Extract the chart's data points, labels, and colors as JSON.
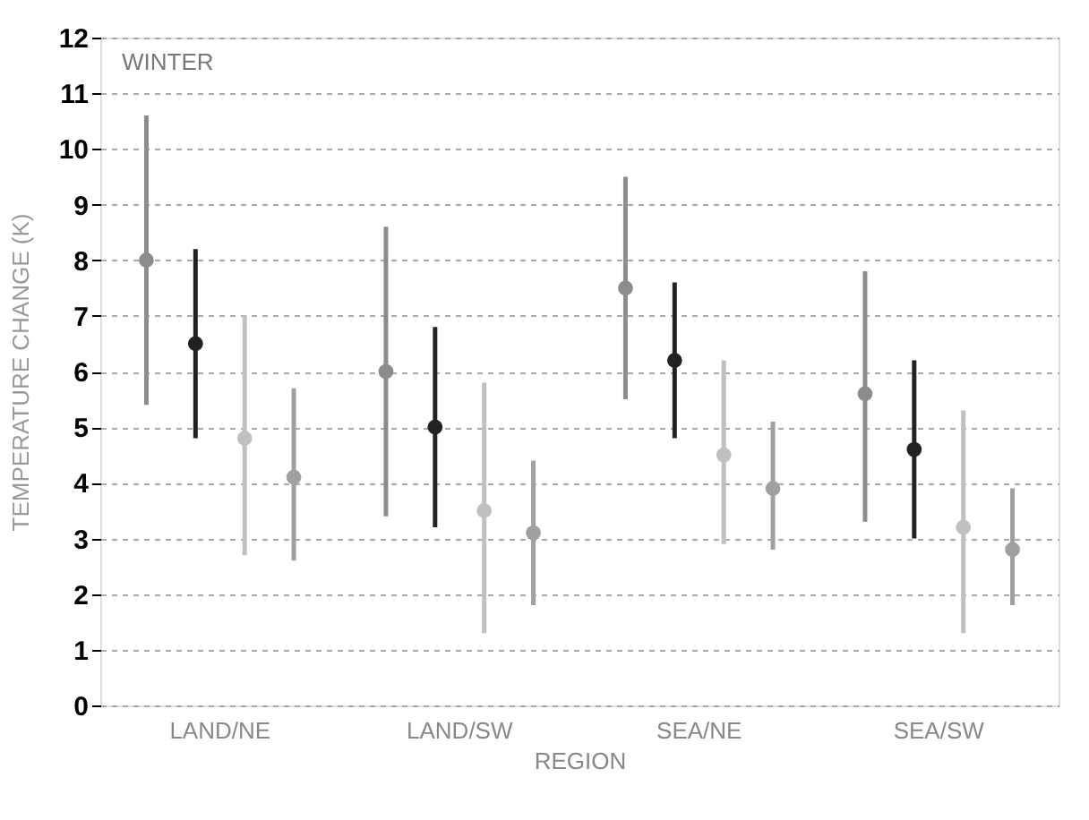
{
  "chart_data": {
    "type": "scatter",
    "xlabel": "REGION",
    "ylabel": "TEMPERATURE CHANGE (K)",
    "categories": [
      "LAND/NE",
      "LAND/SW",
      "SEA/NE",
      "SEA/SW"
    ],
    "series": [
      {
        "color": "#8c8c8c",
        "values": [
          8.0,
          6.0,
          7.5,
          5.6
        ],
        "errors": [
          [
            5.4,
            10.6
          ],
          [
            3.4,
            8.6
          ],
          [
            5.5,
            9.5
          ],
          [
            3.3,
            7.8
          ]
        ]
      },
      {
        "color": "#222222",
        "values": [
          6.5,
          5.0,
          6.2,
          4.6
        ],
        "errors": [
          [
            4.8,
            8.2
          ],
          [
            3.2,
            6.8
          ],
          [
            4.8,
            7.6
          ],
          [
            3.0,
            6.2
          ]
        ]
      },
      {
        "color": "#c0c0c0",
        "values": [
          4.8,
          3.5,
          4.5,
          3.2
        ],
        "errors": [
          [
            2.7,
            7.0
          ],
          [
            1.3,
            5.8
          ],
          [
            2.9,
            6.2
          ],
          [
            1.3,
            5.3
          ]
        ]
      },
      {
        "color": "#a0a0a0",
        "values": [
          4.1,
          3.1,
          3.9,
          2.8
        ],
        "errors": [
          [
            2.6,
            5.7
          ],
          [
            1.8,
            4.4
          ],
          [
            2.8,
            5.1
          ],
          [
            1.8,
            3.9
          ]
        ]
      }
    ],
    "ylim": [
      0,
      12
    ],
    "yticks": [
      0,
      1,
      2,
      3,
      4,
      5,
      6,
      7,
      8,
      9,
      10,
      11,
      12
    ],
    "grid": "y",
    "marker": "circle",
    "annotations": [
      "WINTER"
    ]
  }
}
